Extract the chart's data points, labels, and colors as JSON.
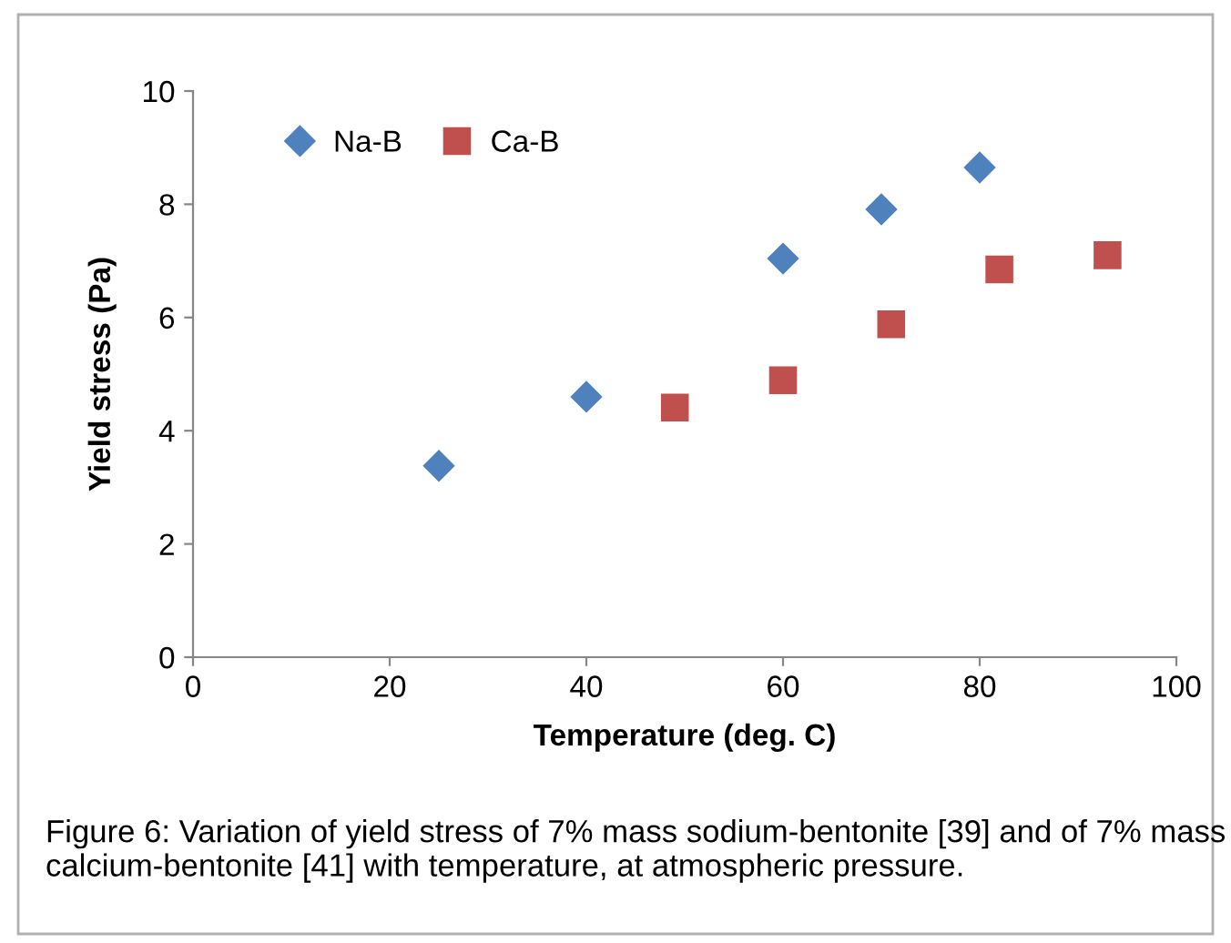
{
  "chart_data": {
    "type": "scatter",
    "xlabel": "Temperature (deg. C)",
    "ylabel": "Yield stress (Pa)",
    "xlim": [
      0,
      100
    ],
    "xticks": [
      0,
      20,
      40,
      60,
      80,
      100
    ],
    "ylim": [
      0,
      10
    ],
    "yticks": [
      0,
      2,
      4,
      6,
      8,
      10
    ],
    "grid": false,
    "legend": "top left",
    "series": [
      {
        "name": "Na-B",
        "color": "#4f81bd",
        "marker": "diamond",
        "x": [
          25,
          40,
          60,
          70,
          80
        ],
        "values": [
          3.38,
          4.6,
          7.04,
          7.91,
          8.65
        ]
      },
      {
        "name": "Ca-B",
        "color": "#c0504d",
        "marker": "square",
        "x": [
          49,
          60,
          71,
          82,
          93
        ],
        "values": [
          4.41,
          4.89,
          5.88,
          6.85,
          7.1
        ]
      }
    ],
    "annotations": [
      "Figure 6: Variation of yield stress of 7% mass sodium-bentonite [39] and of 7% mass calcium-bentonite [41] with temperature, at atmospheric pressure."
    ]
  }
}
